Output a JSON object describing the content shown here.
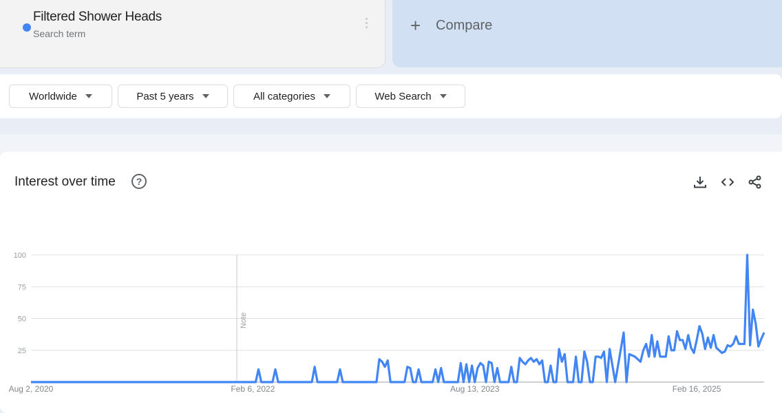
{
  "search_term": {
    "name": "Filtered Shower Heads",
    "subtitle": "Search term",
    "color": "#4285f4",
    "menu_icon": "more-vert-icon"
  },
  "compare": {
    "icon": "plus-icon",
    "label": "Compare"
  },
  "filters": [
    {
      "label": "Worldwide"
    },
    {
      "label": "Past 5 years"
    },
    {
      "label": "All categories"
    },
    {
      "label": "Web Search"
    }
  ],
  "panel": {
    "title": "Interest over time",
    "help_icon": "?",
    "actions": [
      "download-icon",
      "embed-code-icon",
      "share-icon"
    ]
  },
  "chart_data": {
    "type": "line",
    "interval": "weekly",
    "start": "2020-08-02",
    "x_tick_labels": [
      "Aug 2, 2020",
      "Feb 6, 2022",
      "Aug 13, 2023",
      "Feb 16, 2025"
    ],
    "y_tick_labels": [
      "100",
      "75",
      "50",
      "25"
    ],
    "ylim": [
      0,
      100
    ],
    "grid": true,
    "annotation": "Note",
    "line_color": "#4285f4",
    "values": [
      0,
      0,
      0,
      0,
      0,
      0,
      0,
      0,
      0,
      0,
      0,
      0,
      0,
      0,
      0,
      0,
      0,
      0,
      0,
      0,
      0,
      0,
      0,
      0,
      0,
      0,
      0,
      0,
      0,
      0,
      0,
      0,
      0,
      0,
      0,
      0,
      0,
      0,
      0,
      0,
      0,
      0,
      0,
      0,
      0,
      0,
      0,
      0,
      0,
      0,
      0,
      0,
      0,
      0,
      0,
      0,
      0,
      0,
      0,
      0,
      0,
      0,
      0,
      0,
      0,
      0,
      0,
      0,
      0,
      0,
      0,
      0,
      0,
      0,
      0,
      0,
      0,
      0,
      0,
      0,
      0,
      10,
      0,
      0,
      0,
      0,
      0,
      10,
      0,
      0,
      0,
      0,
      0,
      0,
      0,
      0,
      0,
      0,
      0,
      0,
      0,
      12,
      0,
      0,
      0,
      0,
      0,
      0,
      0,
      0,
      10,
      0,
      0,
      0,
      0,
      0,
      0,
      0,
      0,
      0,
      0,
      0,
      0,
      0,
      18,
      16,
      12,
      17,
      0,
      0,
      0,
      0,
      0,
      0,
      12,
      11,
      0,
      0,
      10,
      0,
      0,
      0,
      0,
      0,
      10,
      0,
      11,
      0,
      0,
      0,
      0,
      0,
      0,
      15,
      0,
      14,
      0,
      13,
      0,
      11,
      15,
      13,
      0,
      16,
      15,
      0,
      11,
      0,
      0,
      0,
      0,
      12,
      0,
      0,
      19,
      16,
      14,
      17,
      19,
      16,
      18,
      14,
      17,
      0,
      0,
      13,
      0,
      0,
      26,
      16,
      22,
      0,
      0,
      0,
      20,
      0,
      0,
      24,
      16,
      0,
      0,
      20,
      20,
      19,
      24,
      0,
      26,
      13,
      0,
      13,
      26,
      39,
      0,
      22,
      21,
      20,
      18,
      16,
      25,
      30,
      20,
      37,
      20,
      32,
      20,
      20,
      20,
      36,
      25,
      25,
      40,
      33,
      33,
      26,
      37,
      27,
      23,
      33,
      44,
      38,
      26,
      35,
      27,
      37,
      27,
      25,
      23,
      24,
      29,
      28,
      30,
      36,
      30,
      30,
      30,
      100,
      29,
      57,
      46,
      28,
      34,
      39
    ]
  }
}
